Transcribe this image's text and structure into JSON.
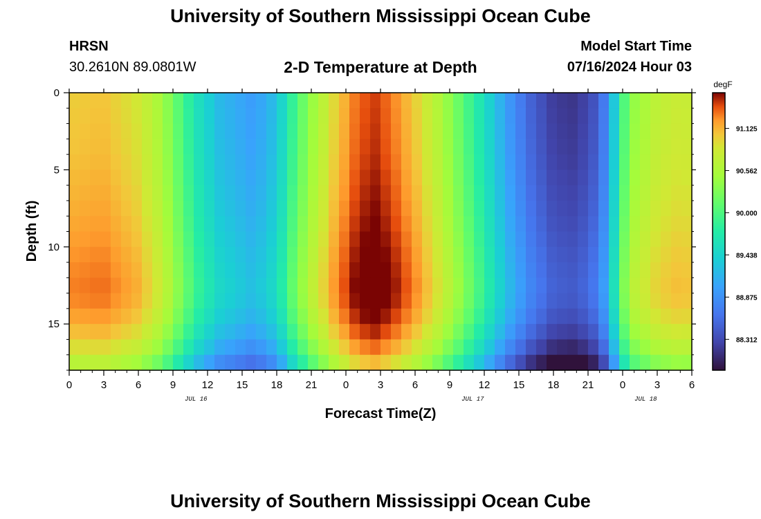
{
  "header": {
    "title": "University of Southern Mississippi Ocean Cube",
    "station": "HRSN",
    "coords": "30.2610N  89.0801W",
    "subtitle": "2-D Temperature at Depth",
    "model_start_label": "Model Start Time",
    "model_start_value": "07/16/2024 Hour 03"
  },
  "footer": {
    "title": "University of Southern Mississippi Ocean Cube"
  },
  "chart_data": {
    "type": "heatmap",
    "title": "2-D Temperature at Depth",
    "xlabel": "Forecast Time(Z)",
    "ylabel": "Depth (ft)",
    "x_range_hours": [
      0,
      54
    ],
    "x_ticks": [
      "0",
      "3",
      "6",
      "9",
      "12",
      "15",
      "18",
      "21",
      "0",
      "3",
      "6",
      "9",
      "12",
      "15",
      "18",
      "21",
      "0",
      "3",
      "6"
    ],
    "date_labels": [
      {
        "hour": 11,
        "text": "JUL 16"
      },
      {
        "hour": 35,
        "text": "JUL 17"
      },
      {
        "hour": 50,
        "text": "JUL 18"
      }
    ],
    "y_range_ft": [
      0,
      18
    ],
    "y_ticks": [
      0,
      5,
      10,
      15
    ],
    "colorbar": {
      "label": "degF",
      "min": 87.9,
      "max": 91.6,
      "ticks": [
        "91.125",
        "90.562",
        "90.000",
        "89.438",
        "88.875",
        "88.312"
      ]
    },
    "anchors_hours": [
      0,
      3,
      6,
      8,
      9.5,
      11,
      13,
      16,
      18,
      19.5,
      21,
      23,
      25,
      26.5,
      28,
      30,
      32,
      34,
      36,
      38,
      40,
      42,
      44,
      46,
      47,
      48,
      49,
      51,
      53,
      54
    ],
    "surface_degF": [
      91.0,
      91.05,
      90.85,
      90.5,
      90.05,
      89.6,
      89.2,
      88.95,
      89.25,
      89.9,
      90.4,
      90.95,
      91.35,
      91.45,
      91.3,
      91.0,
      90.6,
      90.1,
      89.55,
      88.95,
      88.5,
      88.2,
      88.15,
      88.45,
      89.1,
      89.95,
      90.4,
      90.7,
      90.8,
      90.75
    ],
    "depth_profile_ft": [
      0,
      4,
      8,
      11,
      13,
      15,
      16.5,
      17.5,
      18
    ],
    "depth_offset_degF": [
      0,
      0.05,
      0.15,
      0.25,
      0.3,
      0.15,
      -0.1,
      -0.35,
      -0.5
    ]
  }
}
